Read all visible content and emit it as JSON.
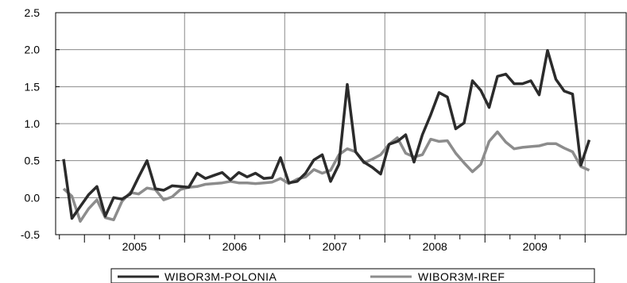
{
  "chart_data": {
    "type": "line",
    "title": "",
    "xlabel": "",
    "ylabel": "",
    "ylim": [
      -0.5,
      2.5
    ],
    "yticks": [
      "-0.5",
      "0.0",
      "0.5",
      "1.0",
      "1.5",
      "2.0",
      "2.5"
    ],
    "year_labels": [
      "2005",
      "2006",
      "2007",
      "2008",
      "2009"
    ],
    "grid": true,
    "legend_position": "bottom",
    "x_start": "2004-10",
    "x_frequency": "monthly",
    "series": [
      {
        "name": "WIBOR3M-POLONIA",
        "color": "#2b2b2b",
        "values": [
          0.52,
          -0.28,
          -0.12,
          0.04,
          0.15,
          -0.25,
          0.0,
          -0.02,
          0.05,
          0.28,
          0.5,
          0.12,
          0.1,
          0.16,
          0.15,
          0.14,
          0.33,
          0.26,
          0.3,
          0.34,
          0.24,
          0.34,
          0.28,
          0.33,
          0.26,
          0.27,
          0.54,
          0.2,
          0.22,
          0.33,
          0.51,
          0.58,
          0.22,
          0.45,
          1.53,
          0.62,
          0.48,
          0.41,
          0.32,
          0.72,
          0.76,
          0.85,
          0.48,
          0.85,
          1.12,
          1.42,
          1.36,
          0.93,
          1.01,
          1.58,
          1.45,
          1.22,
          1.64,
          1.67,
          1.54,
          1.54,
          1.58,
          1.39,
          1.99,
          1.6,
          1.44,
          1.4,
          0.44,
          0.78
        ]
      },
      {
        "name": "WIBOR3M-IREF",
        "color": "#8c8c8c",
        "values": [
          0.12,
          0.02,
          -0.32,
          -0.15,
          -0.03,
          -0.27,
          -0.3,
          -0.05,
          0.07,
          0.05,
          0.13,
          0.11,
          -0.03,
          0.01,
          0.11,
          0.14,
          0.15,
          0.18,
          0.19,
          0.2,
          0.22,
          0.2,
          0.2,
          0.19,
          0.2,
          0.21,
          0.26,
          0.19,
          0.25,
          0.28,
          0.38,
          0.33,
          0.37,
          0.58,
          0.66,
          0.62,
          0.47,
          0.52,
          0.58,
          0.72,
          0.81,
          0.6,
          0.55,
          0.58,
          0.79,
          0.76,
          0.77,
          0.6,
          0.47,
          0.35,
          0.45,
          0.76,
          0.89,
          0.75,
          0.66,
          0.68,
          0.69,
          0.7,
          0.73,
          0.73,
          0.67,
          0.62,
          0.42,
          0.37
        ]
      }
    ]
  }
}
